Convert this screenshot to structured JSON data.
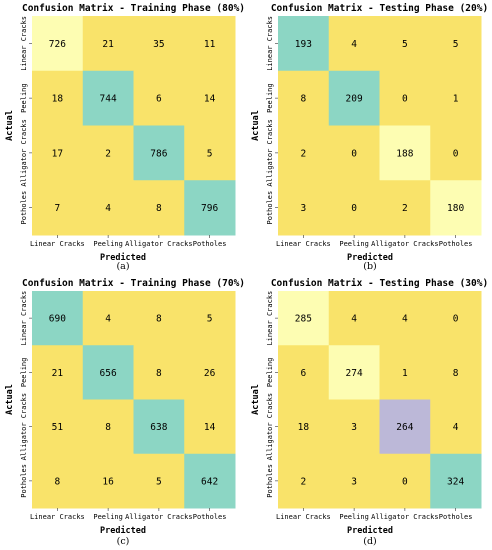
{
  "chart_data": [
    {
      "type": "heatmap",
      "title": "Confusion Matrix - Training Phase (80%)",
      "xlabel": "Predicted",
      "ylabel": "Actual",
      "x_tick_labels": [
        "Linear Cracks",
        "Peeling",
        "Alligator Cracks",
        "Potholes"
      ],
      "y_tick_labels": [
        "Linear Cracks",
        "Peeling",
        "Alligator Cracks",
        "Potholes"
      ],
      "values": [
        [
          726,
          21,
          35,
          11
        ],
        [
          18,
          744,
          6,
          14
        ],
        [
          17,
          2,
          786,
          5
        ],
        [
          7,
          4,
          8,
          796
        ]
      ],
      "cell_colors": [
        [
          "#fdfdb2",
          "#f9e36a",
          "#f9e36a",
          "#f9e36a"
        ],
        [
          "#f9e36a",
          "#8cd6c4",
          "#f9e36a",
          "#f9e36a"
        ],
        [
          "#f9e36a",
          "#f9e36a",
          "#8cd6c4",
          "#f9e36a"
        ],
        [
          "#f9e36a",
          "#f9e36a",
          "#f9e36a",
          "#8cd6c4"
        ]
      ],
      "caption": "(a)"
    },
    {
      "type": "heatmap",
      "title": "Confusion Matrix - Testing Phase (20%)",
      "xlabel": "Predicted",
      "ylabel": "Actual",
      "x_tick_labels": [
        "Linear Cracks",
        "Peeling",
        "Alligator Cracks",
        "Potholes"
      ],
      "y_tick_labels": [
        "Linear Cracks",
        "Peeling",
        "Alligator Cracks",
        "Potholes"
      ],
      "values": [
        [
          193,
          4,
          5,
          5
        ],
        [
          8,
          209,
          0,
          1
        ],
        [
          2,
          0,
          188,
          0
        ],
        [
          3,
          0,
          2,
          180
        ]
      ],
      "cell_colors": [
        [
          "#8cd6c4",
          "#f9e36a",
          "#f9e36a",
          "#f9e36a"
        ],
        [
          "#f9e36a",
          "#8cd6c4",
          "#f9e36a",
          "#f9e36a"
        ],
        [
          "#f9e36a",
          "#f9e36a",
          "#fdfdb2",
          "#f9e36a"
        ],
        [
          "#f9e36a",
          "#f9e36a",
          "#f9e36a",
          "#fdfdb2"
        ]
      ],
      "caption": "(b)"
    },
    {
      "type": "heatmap",
      "title": "Confusion Matrix - Training Phase (70%)",
      "xlabel": "Predicted",
      "ylabel": "Actual",
      "x_tick_labels": [
        "Linear Cracks",
        "Peeling",
        "Alligator Cracks",
        "Potholes"
      ],
      "y_tick_labels": [
        "Linear Cracks",
        "Peeling",
        "Alligator Cracks",
        "Potholes"
      ],
      "values": [
        [
          690,
          4,
          8,
          5
        ],
        [
          21,
          656,
          8,
          26
        ],
        [
          51,
          8,
          638,
          14
        ],
        [
          8,
          16,
          5,
          642
        ]
      ],
      "cell_colors": [
        [
          "#8cd6c4",
          "#f9e36a",
          "#f9e36a",
          "#f9e36a"
        ],
        [
          "#f9e36a",
          "#8cd6c4",
          "#f9e36a",
          "#f9e36a"
        ],
        [
          "#f9e36a",
          "#f9e36a",
          "#8cd6c4",
          "#f9e36a"
        ],
        [
          "#f9e36a",
          "#f9e36a",
          "#f9e36a",
          "#8cd6c4"
        ]
      ],
      "caption": "(c)"
    },
    {
      "type": "heatmap",
      "title": "Confusion Matrix - Testing Phase (30%)",
      "xlabel": "Predicted",
      "ylabel": "Actual",
      "x_tick_labels": [
        "Linear Cracks",
        "Peeling",
        "Alligator Cracks",
        "Potholes"
      ],
      "y_tick_labels": [
        "Linear Cracks",
        "Peeling",
        "Alligator Cracks",
        "Potholes"
      ],
      "values": [
        [
          285,
          4,
          4,
          0
        ],
        [
          6,
          274,
          1,
          8
        ],
        [
          18,
          3,
          264,
          4
        ],
        [
          2,
          3,
          0,
          324
        ]
      ],
      "cell_colors": [
        [
          "#fdfdb2",
          "#f9e36a",
          "#f9e36a",
          "#f9e36a"
        ],
        [
          "#f9e36a",
          "#fdfdb2",
          "#f9e36a",
          "#f9e36a"
        ],
        [
          "#f9e36a",
          "#f9e36a",
          "#bcb8d8",
          "#f9e36a"
        ],
        [
          "#f9e36a",
          "#f9e36a",
          "#f9e36a",
          "#8cd6c4"
        ]
      ],
      "caption": "(d)"
    }
  ]
}
